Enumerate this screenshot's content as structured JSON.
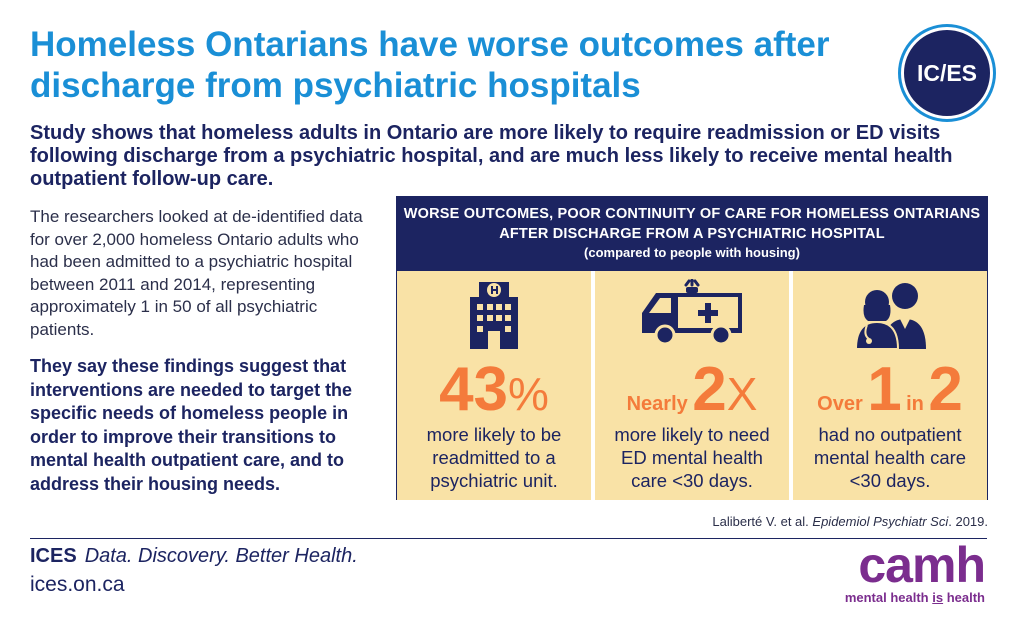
{
  "title": "Homeless Ontarians have worse outcomes after discharge from psychiatric hospitals",
  "logo": {
    "text": "IC/ES"
  },
  "subtitle": "Study shows that homeless adults in Ontario are more likely to require readmission or ED visits following discharge from a psychiatric hospital, and are much less likely to receive mental health outpatient follow-up care.",
  "intro": "The researchers looked at de-identified data for over 2,000 homeless Ontario adults who had been admitted to a psychiatric hospital  between 2011 and 2014, representing approximately 1 in 50 of all psychiatric patients.",
  "conclusion": "They say these findings suggest that interventions are needed to target the specific needs of homeless people in order to improve their transitions to mental health outpatient care, and to address their housing needs.",
  "panel": {
    "heading": "WORSE OUTCOMES, POOR CONTINUITY OF CARE FOR HOMELESS ONTARIANS AFTER DISCHARGE FROM A PSYCHIATRIC HOSPITAL",
    "subheading": "(compared to people with housing)",
    "stats": [
      {
        "icon": "hospital-icon",
        "value": "43",
        "unit": "%",
        "desc": "more likely to be readmitted to a psychiatric unit."
      },
      {
        "icon": "ambulance-icon",
        "prefix": "Nearly",
        "value": "2",
        "unit": "X",
        "desc": "more likely to need ED mental health care <30 days."
      },
      {
        "icon": "doctors-icon",
        "prefix": "Over",
        "value": "1",
        "middle": "in",
        "value2": "2",
        "desc": "had no outpatient mental health care <30 days."
      }
    ]
  },
  "citation": {
    "authors": "Laliberté V. et al.",
    "journal": "Epidemiol Psychiatr Sci",
    "year": ". 2019."
  },
  "footer": {
    "brand": "ICES",
    "slogan": "Data. Discovery. Better Health.",
    "url": "ices.on.ca"
  },
  "camh": {
    "wordmark": "camh",
    "tag_pre": "mental health ",
    "tag_is": "is",
    "tag_post": " health"
  },
  "colors": {
    "title_blue": "#1a8fd6",
    "navy": "#1c2461",
    "orange": "#f47b3b",
    "panel_yellow": "#f9e2a6",
    "camh_purple": "#7b2d8e"
  }
}
